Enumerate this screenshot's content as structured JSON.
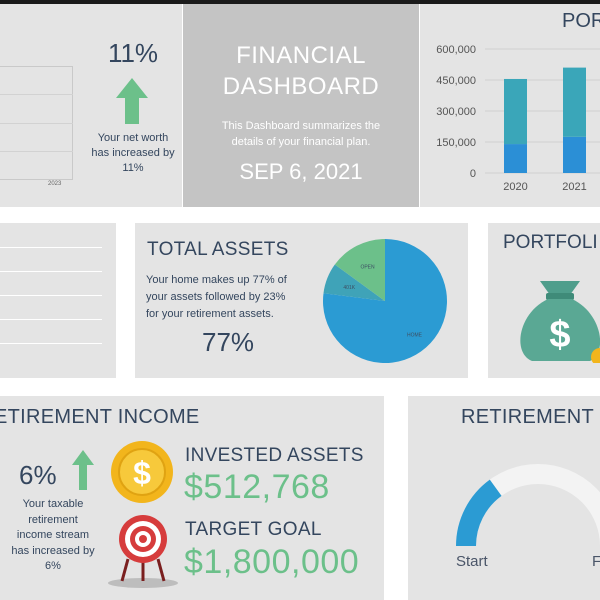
{
  "colors": {
    "panel_bg": "#e4e4e4",
    "title_bg": "#c4c4c4",
    "navy_text": "#34465e",
    "green": "#6cc08a",
    "bar_teal": "#3aa6b9",
    "bar_blue": "#2b8fd6",
    "pie_main": "#2b9bd3",
    "gold": "#f2b51c",
    "target_red": "#d63c3c"
  },
  "networth": {
    "mini_chart_year": "2023",
    "percent": "11%",
    "description": "Your net worth has increased by 11%",
    "arrow_icon": "up-arrow-icon"
  },
  "header": {
    "title": "FINANCIAL DASHBOARD",
    "subtitle": "This Dashboard summarizes the details of your financial plan.",
    "date": "SEP 6, 2021"
  },
  "portfolio_chart": {
    "title": "POR"
  },
  "total_assets": {
    "title": "TOTAL ASSETS",
    "description": "Your home makes up 77% of your assets followed by 23% for your retirement assets.",
    "percent": "77%"
  },
  "portfolio": {
    "title": "PORTFOLI",
    "icon": "money-bag-icon"
  },
  "retirement_income": {
    "title": "ETIREMENT INCOME",
    "percent": "6%",
    "description": "Your taxable retirement income stream has increased by 6%",
    "invested_label": "INVESTED ASSETS",
    "invested_value": "$512,768",
    "target_label": "TARGET GOAL",
    "target_value": "$1,800,000",
    "coin_icon": "dollar-coin-icon",
    "target_icon": "target-icon"
  },
  "retirement_date": {
    "title": "RETIREMENT D",
    "start_label": "Start",
    "finish_label": "F",
    "progress_fraction": 0.3
  },
  "chart_data": [
    {
      "type": "bar",
      "title": "",
      "categories": [
        "2020",
        "2021"
      ],
      "series": [
        {
          "values": [
            140000,
            175000
          ]
        },
        {
          "values": [
            315000,
            335000
          ]
        }
      ],
      "yticks": [
        "600,000",
        "450,000",
        "300,000",
        "150,000",
        "0"
      ],
      "ylim": [
        0,
        600000
      ],
      "grid": true
    },
    {
      "type": "pie",
      "title": "",
      "slices": [
        {
          "label": "HOME",
          "value": 77
        },
        {
          "label": "401K",
          "value": 8
        },
        {
          "label": "OPEN",
          "value": 15
        }
      ]
    }
  ]
}
